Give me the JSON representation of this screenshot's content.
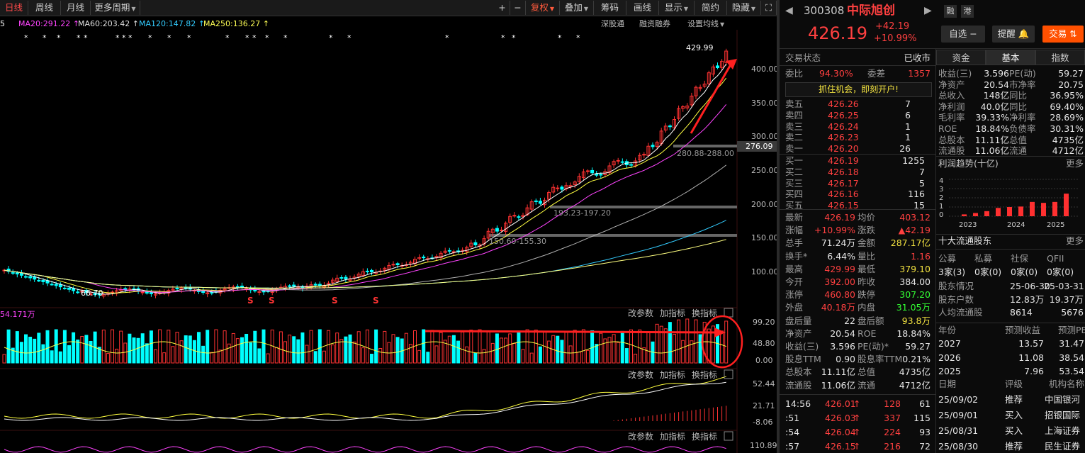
{
  "toolbar": {
    "items": [
      "日线",
      "周线",
      "月线",
      "更多周期",
      "+",
      "−",
      "复权",
      "叠加",
      "筹码",
      "画线",
      "显示",
      "简约",
      "隐藏"
    ]
  },
  "ma_bar": {
    "items": [
      {
        "label": "5",
        "color": "#ffffff"
      },
      {
        "label": "MA20:291.22 ↑",
        "color": "#ff44ff"
      },
      {
        "label": "MA60:203.42 ↑",
        "color": "#e0e0e0"
      },
      {
        "label": "MA120:147.82 ↑",
        "color": "#33ccff"
      },
      {
        "label": "MA250:136.27 ↑",
        "color": "#ffff55"
      }
    ],
    "right_links": [
      "深股通",
      "融资融券",
      "设置均线"
    ]
  },
  "chart_main": {
    "y_ticks": [
      "400.00",
      "350.00",
      "300.00",
      "250.00",
      "200.00",
      "150.00",
      "100.00"
    ],
    "current_price_tag": "276.09",
    "high_label": "429.99",
    "low_label": "66.70",
    "zones": [
      "280.88-288.00",
      "193.23-197.20",
      "150.60-155.30"
    ],
    "markers_s": [
      "S",
      "S",
      "S",
      "S"
    ],
    "panel_controls": [
      "改参数",
      "加指标",
      "换指标"
    ]
  },
  "chart_volume": {
    "label": "54.171万",
    "y_ticks": [
      "99.20",
      "48.80",
      "0.00"
    ]
  },
  "chart_ind1": {
    "y_ticks": [
      "52.44",
      "21.71",
      "-8.06"
    ]
  },
  "chart_ind2": {
    "y_ticks": [
      "110.89"
    ]
  },
  "stock": {
    "code": "300308",
    "name": "中际旭创",
    "tag1": "融",
    "tag2": "港",
    "price": "426.19",
    "change": "+42.19",
    "change_pct": "+10.99%",
    "watch_btn": "自选 −",
    "alert_btn": "提醒",
    "trade_btn": "交易"
  },
  "status": {
    "label": "交易状态",
    "value": "已收市"
  },
  "order_ratio": {
    "label": "委比",
    "value": "94.30%",
    "label2": "委差",
    "value2": "1357"
  },
  "promo": "抓住机会，即刻开户!",
  "asks": [
    {
      "label": "卖五",
      "price": "426.26",
      "vol": "7"
    },
    {
      "label": "卖四",
      "price": "426.25",
      "vol": "6"
    },
    {
      "label": "卖三",
      "price": "426.24",
      "vol": "1"
    },
    {
      "label": "卖二",
      "price": "426.23",
      "vol": "1"
    },
    {
      "label": "卖一",
      "price": "426.20",
      "vol": "26"
    }
  ],
  "bids": [
    {
      "label": "买一",
      "price": "426.19",
      "vol": "1255"
    },
    {
      "label": "买二",
      "price": "426.18",
      "vol": "7"
    },
    {
      "label": "买三",
      "price": "426.17",
      "vol": "5"
    },
    {
      "label": "买四",
      "price": "426.16",
      "vol": "116"
    },
    {
      "label": "买五",
      "price": "426.15",
      "vol": "15"
    }
  ],
  "quote": [
    {
      "l": "最新",
      "v": "426.19",
      "vc": "r",
      "l2": "均价",
      "v2": "403.12",
      "v2c": "r"
    },
    {
      "l": "涨幅",
      "v": "+10.99%",
      "vc": "r",
      "l2": "涨跌",
      "v2": "▲42.19",
      "v2c": "r"
    },
    {
      "l": "总手",
      "v": "71.24万",
      "vc": "w",
      "l2": "金额",
      "v2": "287.17亿",
      "v2c": "y"
    },
    {
      "l": "换手*",
      "v": "6.44%",
      "vc": "w",
      "l2": "量比",
      "v2": "1.16",
      "v2c": "r"
    },
    {
      "l": "最高",
      "v": "429.99",
      "vc": "r",
      "l2": "最低",
      "v2": "379.10",
      "v2c": "y"
    },
    {
      "l": "今开",
      "v": "392.00",
      "vc": "r",
      "l2": "昨收",
      "v2": "384.00",
      "v2c": "w"
    },
    {
      "l": "涨停",
      "v": "460.80",
      "vc": "r",
      "l2": "跌停",
      "v2": "307.20",
      "v2c": "g"
    },
    {
      "l": "外盘",
      "v": "40.18万",
      "vc": "r",
      "l2": "内盘",
      "v2": "31.05万",
      "v2c": "g"
    },
    {
      "l": "盘后量",
      "v": "22",
      "vc": "w",
      "l2": "盘后额",
      "v2": "93.8万",
      "v2c": "y"
    },
    {
      "l": "净资产",
      "v": "20.54",
      "vc": "w",
      "l2": "ROE",
      "v2": "18.84%",
      "v2c": "w"
    },
    {
      "l": "收益(三)",
      "v": "3.596",
      "vc": "w",
      "l2": "PE(动)*",
      "v2": "59.27",
      "v2c": "w"
    },
    {
      "l": "股息TTM",
      "v": "0.90",
      "vc": "w",
      "l2": "股息率TTM",
      "v2": "0.21%",
      "v2c": "w"
    },
    {
      "l": "总股本",
      "v": "11.11亿",
      "vc": "w",
      "l2": "总值",
      "v2": "4735亿",
      "v2c": "w"
    },
    {
      "l": "流通股",
      "v": "11.06亿",
      "vc": "w",
      "l2": "流通",
      "v2": "4712亿",
      "v2c": "w"
    }
  ],
  "ticks": [
    {
      "t": "14:56",
      "p": "426.01",
      "v": "128",
      "n": "61"
    },
    {
      "t": ":51",
      "p": "426.03",
      "v": "337",
      "n": "115"
    },
    {
      "t": ":54",
      "p": "426.04",
      "v": "224",
      "n": "93"
    },
    {
      "t": ":57",
      "p": "426.15",
      "v": "216",
      "n": "72"
    }
  ],
  "tabs": [
    "资金",
    "基本",
    "指数"
  ],
  "fundamentals": [
    {
      "l": "收益(三)",
      "v": "3.596",
      "l2": "PE(动)",
      "v2": "59.27"
    },
    {
      "l": "净资产",
      "v": "20.54",
      "l2": "市净率",
      "v2": "20.75"
    },
    {
      "l": "总收入",
      "v": "148亿",
      "l2": "同比",
      "v2": "36.95%"
    },
    {
      "l": "净利润",
      "v": "40.0亿",
      "l2": "同比",
      "v2": "69.40%"
    },
    {
      "l": "毛利率",
      "v": "39.33%",
      "l2": "净利率",
      "v2": "28.69%"
    },
    {
      "l": "ROE",
      "v": "18.84%",
      "l2": "负债率",
      "v2": "30.31%"
    },
    {
      "l": "总股本",
      "v": "11.11亿",
      "l2": "总值",
      "v2": "4735亿"
    },
    {
      "l": "流通股",
      "v": "11.06亿",
      "l2": "流通",
      "v2": "4712亿"
    }
  ],
  "profit_trend": {
    "title": "利润趋势(十亿)",
    "more": "更多",
    "y_ticks": [
      "4",
      "3",
      "2",
      "1",
      "0"
    ],
    "x_labels": [
      "2023",
      "2024",
      "2025"
    ]
  },
  "chart_data": {
    "type": "bar",
    "title": "利润趋势(十亿)",
    "categories": [
      "2023",
      "2023",
      "2023",
      "2023",
      "2024",
      "2024",
      "2024",
      "2024",
      "2025",
      "2025"
    ],
    "values": [
      0.2,
      0.35,
      0.55,
      0.9,
      1.0,
      1.05,
      1.55,
      1.45,
      1.55,
      2.45
    ],
    "ylim": [
      0,
      4
    ]
  },
  "holders": {
    "title": "十大流通股东",
    "more": "更多",
    "types": [
      "公募",
      "私募",
      "社保",
      "QFII"
    ],
    "counts": [
      "3家(3)",
      "0家(0)",
      "0家(0)",
      "0家(0)"
    ],
    "rows": [
      {
        "l": "股东情况",
        "a": "25-06-30",
        "b": "25-03-31"
      },
      {
        "l": "股东户数",
        "a": "12.83万",
        "b": "19.37万"
      },
      {
        "l": "人均流通股",
        "a": "8614",
        "b": "5676"
      }
    ]
  },
  "forecast": {
    "headers": [
      "年份",
      "预测收益",
      "预测PE"
    ],
    "rows": [
      {
        "y": "2027",
        "e": "13.57",
        "pe": "31.47"
      },
      {
        "y": "2026",
        "e": "11.08",
        "pe": "38.54"
      },
      {
        "y": "2025",
        "e": "7.96",
        "pe": "53.54"
      }
    ]
  },
  "ratings": {
    "headers": [
      "日期",
      "评级",
      "机构名称"
    ],
    "rows": [
      {
        "d": "25/09/02",
        "r": "推荐",
        "o": "中国银河"
      },
      {
        "d": "25/09/01",
        "r": "买入",
        "o": "招银国际"
      },
      {
        "d": "25/08/31",
        "r": "买入",
        "o": "上海证券"
      },
      {
        "d": "25/08/30",
        "r": "推荐",
        "o": "民生证券"
      }
    ]
  }
}
